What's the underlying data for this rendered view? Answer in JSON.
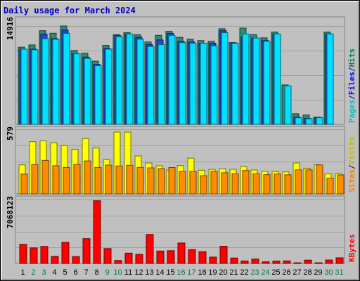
{
  "chart_data": {
    "type": "bar",
    "title": "Daily usage for March 2024",
    "days": [
      1,
      2,
      3,
      4,
      5,
      6,
      7,
      8,
      9,
      10,
      11,
      12,
      13,
      14,
      15,
      16,
      17,
      18,
      19,
      20,
      21,
      22,
      23,
      24,
      25,
      26,
      27,
      28,
      29,
      30,
      31
    ],
    "weekend_days": [
      2,
      3,
      9,
      10,
      16,
      17,
      23,
      24,
      30,
      31
    ],
    "panels": [
      {
        "name": "hits",
        "max_label": "14916",
        "max_value": 14916,
        "legend": [
          {
            "label": "Pages",
            "color": "#00c0c0"
          },
          {
            "label": "/",
            "color": "#000080"
          },
          {
            "label": "Files",
            "color": "#0000ff"
          },
          {
            "label": "/",
            "color": "#000080"
          },
          {
            "label": "Hits",
            "color": "#008060"
          }
        ],
        "series": [
          {
            "name": "Hits",
            "color": "#2e8b6e",
            "values": [
              11700,
              12040,
              14200,
              13820,
              14916,
              11200,
              10800,
              9580,
              11980,
              13600,
              13900,
              13580,
              12500,
              13500,
              14100,
              13200,
              12900,
              12700,
              12600,
              14500,
              12400,
              14600,
              13600,
              13120,
              14000,
              5980,
              1610,
              1420,
              1090,
              14000,
              0
            ]
          },
          {
            "name": "Files",
            "color": "#2244dd",
            "values": [
              11400,
              11400,
              13700,
              13000,
              14300,
              10700,
              10200,
              9100,
              11500,
              13450,
              13700,
              13200,
              12100,
              12800,
              13800,
              12600,
              12500,
              12300,
              12300,
              14200,
              12350,
              13250,
              13050,
              12700,
              13700,
              0,
              1100,
              910,
              1060,
              13700,
              0
            ]
          },
          {
            "name": "Pages",
            "color": "#00e0ff",
            "values": [
              11400,
              11300,
              13000,
              12900,
              13800,
              10700,
              10000,
              8900,
              11400,
              13300,
              13700,
              12900,
              11800,
              12100,
              13500,
              12400,
              12300,
              12300,
              11900,
              13900,
              12300,
              13700,
              13100,
              12600,
              13700,
              5830,
              1000,
              850,
              1000,
              13700,
              0
            ]
          }
        ]
      },
      {
        "name": "visits",
        "max_label": "579",
        "max_value": 579,
        "legend": [
          {
            "label": "Sites",
            "color": "#ff8000"
          },
          {
            "label": "/",
            "color": "#000080"
          },
          {
            "label": "Visits",
            "color": "#c0c000"
          }
        ],
        "series": [
          {
            "name": "Visits",
            "color": "#ffff00",
            "values": [
              260,
              468,
              475,
              459,
              433,
              400,
              495,
              411,
              306,
              554,
              553,
              340,
              277,
              252,
              215,
              254,
              320,
              212,
              220,
              226,
              220,
              245,
              214,
              202,
              200,
              197,
              277,
              230,
              261,
              180,
              180
            ]
          },
          {
            "name": "Sites",
            "color": "#ff8c00",
            "values": [
              177,
              264,
              300,
              252,
              237,
              264,
              295,
              237,
              258,
              250,
              256,
              237,
              233,
              226,
              236,
              201,
              201,
              163,
              201,
              189,
              180,
              209,
              179,
              172,
              178,
              171,
              215,
              215,
              260,
              140,
              170
            ]
          }
        ]
      },
      {
        "name": "kbytes",
        "max_label": "7068123",
        "max_value": 7068123,
        "legend": [
          {
            "label": "KBytes",
            "color": "#ff0000"
          }
        ],
        "series": [
          {
            "name": "KBytes",
            "color": "#ff0000",
            "values": [
              2110000,
              1720000,
              1880000,
              780000,
              2330000,
              760000,
              2740000,
              6930000,
              1640000,
              330000,
              1140000,
              1000000,
              3200000,
              1370000,
              1410000,
              2260000,
              1520000,
              1300000,
              700000,
              1900000,
              600000,
              270000,
              480000,
              180000,
              260000,
              280000,
              70000,
              370000,
              70000,
              380000,
              620000
            ]
          }
        ]
      }
    ]
  }
}
